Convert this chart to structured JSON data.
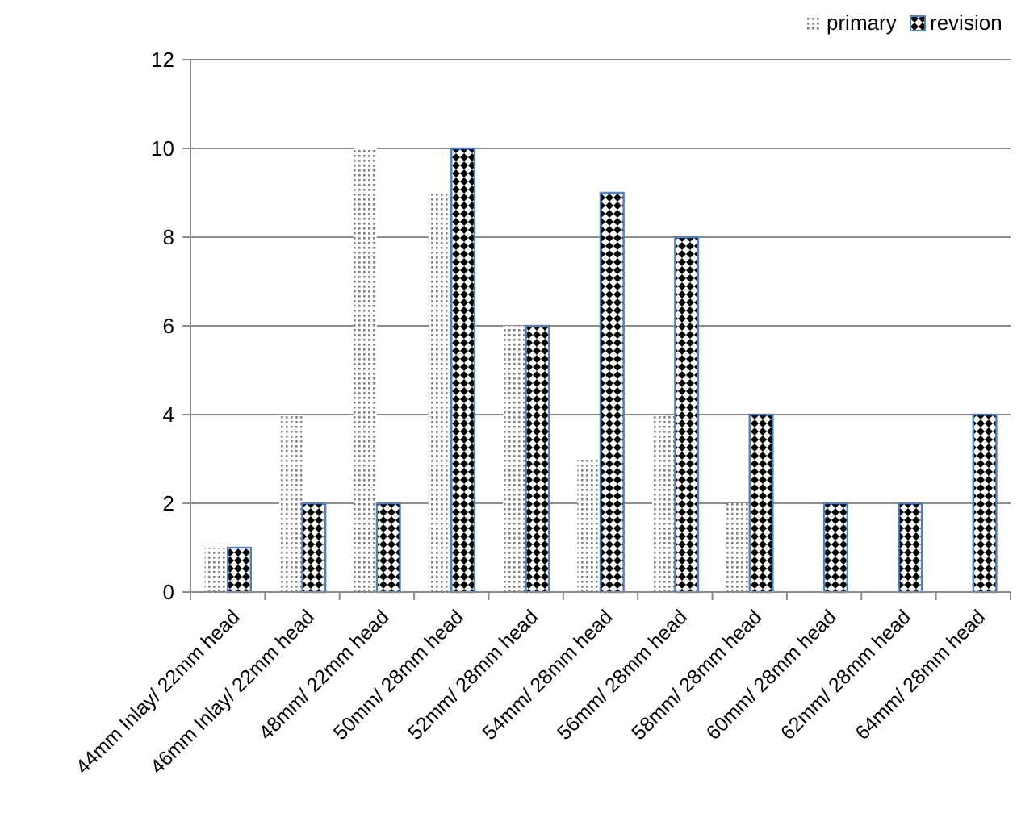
{
  "chart_data": {
    "type": "bar",
    "categories": [
      "44mm Inlay/ 22mm head",
      "46mm Inlay/ 22mm head",
      "48mm/ 22mm head",
      "50mm/ 28mm head",
      "52mm/ 28mm head",
      "54mm/ 28mm head",
      "56mm/ 28mm head",
      "58mm/ 28mm head",
      "60mm/ 28mm head",
      "62mm/ 28mm head",
      "64mm/ 28mm head"
    ],
    "series": [
      {
        "name": "primary",
        "color": "#808080",
        "values": [
          1,
          4,
          10,
          9,
          6,
          3,
          4,
          2,
          0,
          0,
          0
        ]
      },
      {
        "name": "revision",
        "color": "#4f81bd",
        "values": [
          1,
          2,
          2,
          10,
          6,
          9,
          8,
          4,
          2,
          2,
          4
        ]
      }
    ],
    "ylim": [
      0,
      12
    ],
    "yticks": [
      0,
      2,
      4,
      6,
      8,
      10,
      12
    ],
    "grid": "y",
    "legend": "top right"
  }
}
